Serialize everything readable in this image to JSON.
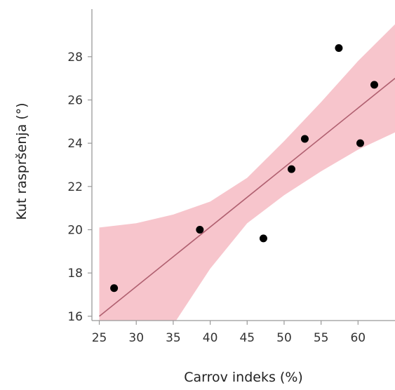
{
  "chart_data": {
    "type": "scatter",
    "xlabel": "Carrov indeks (%)",
    "ylabel": "Kut raspršenja (°)",
    "xlim": [
      24,
      65
    ],
    "ylim": [
      15.8,
      30.2
    ],
    "xticks": [
      25,
      30,
      35,
      40,
      45,
      50,
      55,
      60
    ],
    "yticks": [
      16,
      18,
      20,
      22,
      24,
      26,
      28
    ],
    "grid": false,
    "legend": "none",
    "points": [
      {
        "x": 27,
        "y": 17.3
      },
      {
        "x": 38.6,
        "y": 20.0
      },
      {
        "x": 47.2,
        "y": 19.6
      },
      {
        "x": 51.0,
        "y": 22.8
      },
      {
        "x": 52.8,
        "y": 24.2
      },
      {
        "x": 57.4,
        "y": 28.4
      },
      {
        "x": 60.3,
        "y": 24.0
      },
      {
        "x": 62.2,
        "y": 26.7
      }
    ],
    "fit_line": {
      "x": [
        25,
        65
      ],
      "y": [
        16.0,
        27.0
      ]
    },
    "confidence_band": {
      "x": [
        25,
        30,
        35,
        40,
        45,
        50,
        55,
        60,
        65
      ],
      "lower": [
        11.8,
        13.5,
        15.6,
        18.2,
        20.3,
        21.6,
        22.7,
        23.7,
        24.5
      ],
      "upper": [
        20.1,
        20.3,
        20.7,
        21.3,
        22.4,
        24.1,
        25.9,
        27.8,
        29.5
      ]
    },
    "colors": {
      "points": "#000000",
      "fit_line": "#b06070",
      "band": "#f7c5cc",
      "axis": "#999999"
    }
  }
}
